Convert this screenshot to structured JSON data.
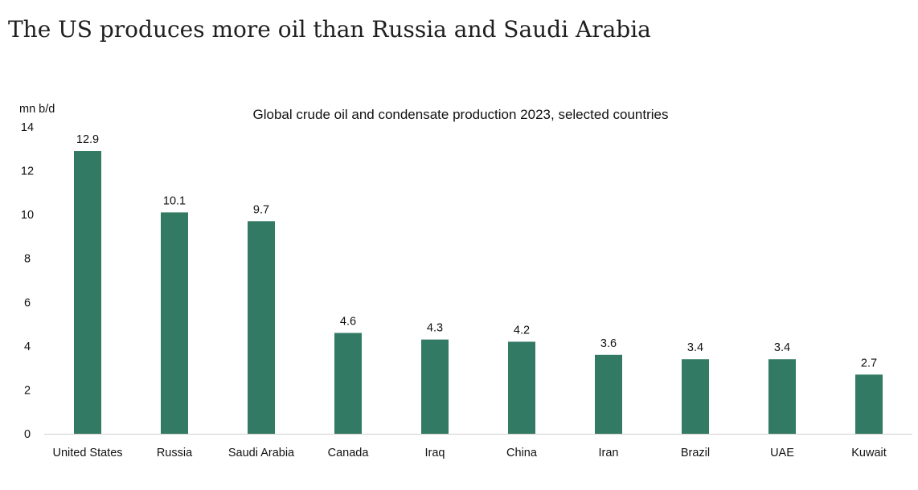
{
  "headline": "The US produces more oil than Russia and Saudi Arabia",
  "colors": {
    "bar": "#327a64",
    "axis": "#cfcfcf",
    "text": "#111111"
  },
  "chart_data": {
    "type": "bar",
    "title": "Global crude oil and condensate production 2023, selected countries",
    "ylabel": "mn b/d",
    "xlabel": "",
    "ylim": [
      0,
      14
    ],
    "yticks": [
      0,
      2,
      4,
      6,
      8,
      10,
      12,
      14
    ],
    "grid": false,
    "categories": [
      "United States",
      "Russia",
      "Saudi Arabia",
      "Canada",
      "Iraq",
      "China",
      "Iran",
      "Brazil",
      "UAE",
      "Kuwait"
    ],
    "values": [
      12.9,
      10.1,
      9.7,
      4.6,
      4.3,
      4.2,
      3.6,
      3.4,
      3.4,
      2.7
    ],
    "data_labels": [
      "12.9",
      "10.1",
      "9.7",
      "4.6",
      "4.3",
      "4.2",
      "3.6",
      "3.4",
      "3.4",
      "2.7"
    ]
  }
}
